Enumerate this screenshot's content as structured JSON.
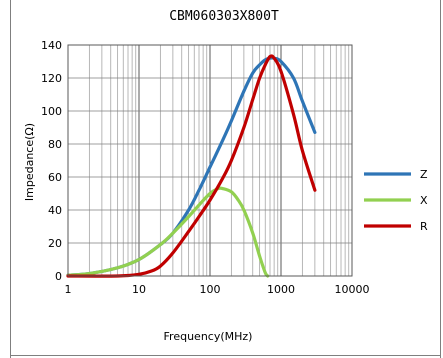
{
  "chart_data": {
    "type": "line",
    "title": "CBM060303X800T",
    "xlabel": "Frequency(MHz)",
    "ylabel": "Impedance(Ω)",
    "xscale": "log",
    "xlim": [
      1,
      10000
    ],
    "ylim": [
      0,
      140
    ],
    "xticks": [
      1,
      10,
      100,
      1000,
      10000
    ],
    "xtick_labels": [
      "1",
      "10",
      "100",
      "1000",
      "10000"
    ],
    "yticks": [
      0,
      20,
      40,
      60,
      80,
      100,
      120,
      140
    ],
    "ytick_labels": [
      "0",
      "20",
      "40",
      "60",
      "80",
      "100",
      "120",
      "140"
    ],
    "grid": true,
    "legend": "right",
    "series": [
      {
        "name": "Z",
        "color": "#2E75B6",
        "x": [
          1,
          2,
          5,
          10,
          20,
          30,
          50,
          70,
          100,
          150,
          200,
          300,
          400,
          500,
          600,
          700,
          800,
          1000,
          1500,
          2000,
          3000
        ],
        "y": [
          0.5,
          1.5,
          5,
          10,
          19,
          26,
          40,
          52,
          66,
          82,
          94,
          112,
          123,
          128,
          131,
          132,
          132,
          130,
          120,
          106,
          87
        ]
      },
      {
        "name": "X",
        "color": "#92D050",
        "x": [
          1,
          2,
          5,
          10,
          20,
          30,
          50,
          70,
          100,
          130,
          150,
          200,
          250,
          300,
          400,
          500,
          600,
          650
        ],
        "y": [
          0.5,
          1.5,
          5,
          10,
          19,
          26,
          36,
          43,
          50,
          53,
          53,
          51,
          46,
          40,
          26,
          12,
          2,
          0
        ]
      },
      {
        "name": "R",
        "color": "#C00000",
        "x": [
          1,
          5,
          10,
          15,
          20,
          30,
          50,
          70,
          100,
          150,
          200,
          300,
          400,
          500,
          600,
          700,
          800,
          1000,
          1500,
          2000,
          3000
        ],
        "y": [
          0,
          0,
          1,
          3,
          6,
          14,
          27,
          36,
          46,
          59,
          70,
          90,
          107,
          120,
          128,
          133,
          132,
          124,
          98,
          76,
          52
        ]
      }
    ]
  }
}
